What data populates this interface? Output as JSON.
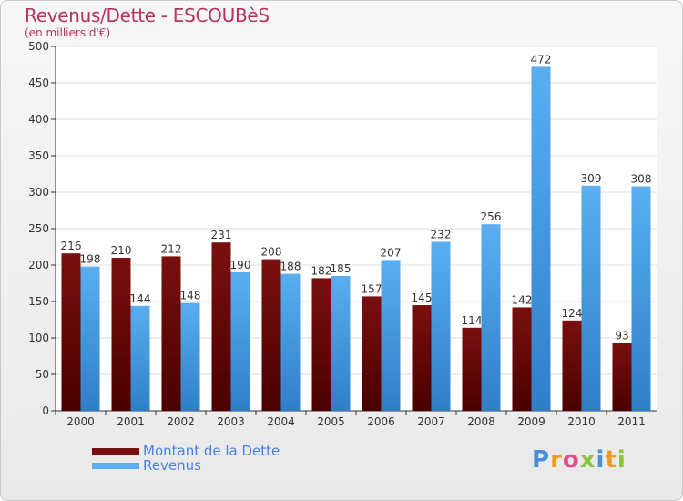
{
  "title": "Revenus/Dette - ESCOUBèS",
  "subtitle": "(en milliers d'€)",
  "colors": {
    "dette_top": "#7a0f0f",
    "dette_bottom": "#4a0000",
    "revenus_top": "#5aaef0",
    "revenus_bottom": "#2f7fc8",
    "title": "#b5325f",
    "legend_text": "#4a7fe0"
  },
  "legend": {
    "dette": "Montant de la Dette",
    "revenus": "Revenus"
  },
  "logo": {
    "letters": [
      "P",
      "r",
      "o",
      "x",
      "i",
      "t",
      "i"
    ],
    "colors": [
      "#4a90d9",
      "#f39a1e",
      "#e84a8a",
      "#8ac43f",
      "#4a90d9",
      "#f39a1e",
      "#8ac43f"
    ]
  },
  "chart_data": {
    "type": "bar",
    "title": "Revenus/Dette - ESCOUBèS",
    "subtitle": "(en milliers d'€)",
    "categories": [
      "2000",
      "2001",
      "2002",
      "2003",
      "2004",
      "2005",
      "2006",
      "2007",
      "2008",
      "2009",
      "2010",
      "2011"
    ],
    "series": [
      {
        "name": "Montant de la Dette",
        "values": [
          216,
          210,
          212,
          231,
          208,
          182,
          157,
          145,
          114,
          142,
          124,
          93
        ]
      },
      {
        "name": "Revenus",
        "values": [
          198,
          144,
          148,
          190,
          188,
          185,
          207,
          232,
          256,
          472,
          309,
          308
        ]
      }
    ],
    "ylim": [
      0,
      500
    ],
    "yticks": [
      0,
      50,
      100,
      150,
      200,
      250,
      300,
      350,
      400,
      450,
      500
    ],
    "grid": true,
    "legend_position": "bottom-left"
  }
}
